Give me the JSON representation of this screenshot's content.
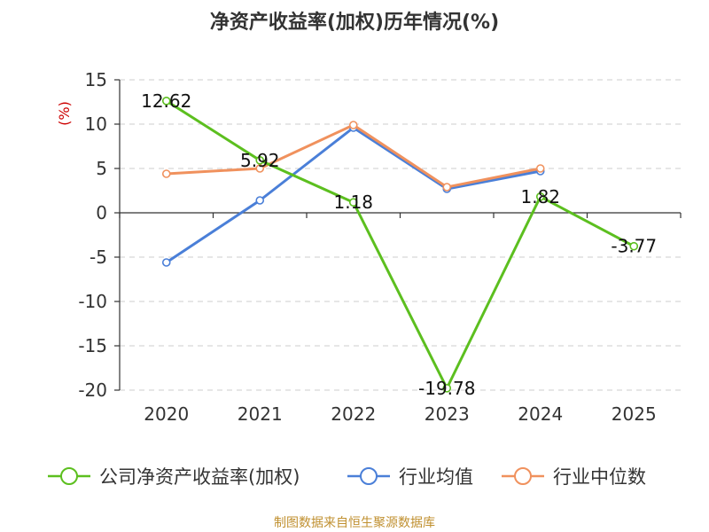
{
  "colors": {
    "company": "#5cbf1f",
    "industry_avg": "#4a7fd8",
    "industry_median": "#f0915d",
    "grid": "#cccccc",
    "axis": "#333333",
    "unit": "#cc0000",
    "source": "#c09030"
  },
  "source_text": "制图数据来自恒生聚源数据库",
  "chart_data": {
    "type": "line",
    "title": "净资产收益率(加权)历年情况(%)",
    "ylabel": "(%)",
    "xlabel": "",
    "categories": [
      "2020",
      "2021",
      "2022",
      "2023",
      "2024",
      "2025"
    ],
    "ylim": [
      -20,
      15
    ],
    "yticks": [
      15,
      10,
      5,
      0,
      -5,
      -10,
      -15,
      -20
    ],
    "ytick_labels": [
      "15",
      "10",
      "5",
      "0",
      "-5",
      "-10",
      "-15",
      "-20"
    ],
    "grid": "horizontal dashed",
    "legend_position": "bottom",
    "series": [
      {
        "name": "公司净资产收益率(加权)",
        "color": "#5cbf1f",
        "values": [
          12.62,
          5.92,
          1.18,
          -19.78,
          1.82,
          -3.77
        ],
        "labels": [
          "12.62",
          "5.92",
          "1.18",
          "-19.78",
          "1.82",
          "-3.77"
        ]
      },
      {
        "name": "行业均值",
        "color": "#4a7fd8",
        "values": [
          -5.6,
          1.4,
          9.6,
          2.7,
          4.7,
          null
        ]
      },
      {
        "name": "行业中位数",
        "color": "#f0915d",
        "values": [
          4.4,
          5.0,
          9.9,
          2.9,
          5.0,
          null
        ]
      }
    ]
  }
}
